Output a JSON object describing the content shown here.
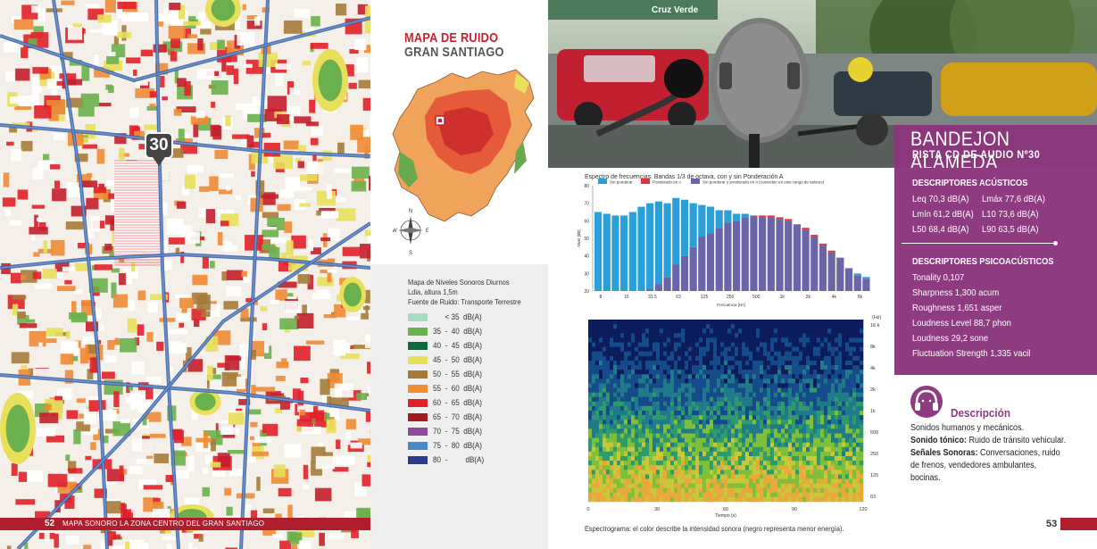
{
  "left_page": {
    "pin_number": "30",
    "page_number": "52",
    "footer_text": "MAPA SONORO LA ZONA CENTRO DEL GRAN SANTIAGO"
  },
  "middle_panel": {
    "title": "MAPA DE RUIDO",
    "subtitle": "GRAN SANTIAGO",
    "compass": {
      "n": "N",
      "s": "S",
      "e": "E",
      "w": "W"
    },
    "legend_title_lines": [
      "Mapa de Niveles Sonoros Diurnos",
      "Ldia, altura 1,5m",
      "Fuente de Ruido: Transporte Terrestre"
    ],
    "legend": [
      {
        "label": "      < 35  dB(A)",
        "color": "#a8dcc0"
      },
      {
        "label": "35  -  40  dB(A)",
        "color": "#6ab04c"
      },
      {
        "label": "40  -  45  dB(A)",
        "color": "#0d6b3f"
      },
      {
        "label": "45  -  50  dB(A)",
        "color": "#e8df5a"
      },
      {
        "label": "50  -  55  dB(A)",
        "color": "#a57b3a"
      },
      {
        "label": "55  -  60  dB(A)",
        "color": "#f08b35"
      },
      {
        "label": "60  -  65  dB(A)",
        "color": "#e2202a"
      },
      {
        "label": "65  -  70  dB(A)",
        "color": "#a11a20"
      },
      {
        "label": "70  -  75  dB(A)",
        "color": "#8c4a9c"
      },
      {
        "label": "75  -  80  dB(A)",
        "color": "#4a8ac8"
      },
      {
        "label": "80  -         dB(A)",
        "color": "#2c3b8f"
      }
    ]
  },
  "right_page": {
    "photo_sign": "Cruz Verde",
    "header_title": "BANDEJON  ALAMEDA",
    "header_subtitle": "PISTA CD DE AUDIO Nº30",
    "acoustic_title": "DESCRIPTORES ACÚSTICOS",
    "acoustic": [
      [
        "Leq 70,3 dB(A)",
        "Lmáx 77,6 dB(A)"
      ],
      [
        "Lmín 61,2 dB(A)",
        "L10 73,6 dB(A)"
      ],
      [
        "L50 68,4 dB(A)",
        "L90 63,5 dB(A)"
      ]
    ],
    "psycho_title": "DESCRIPTORES PSICOACÚSTICOS",
    "psycho": [
      "Tonality 0,107",
      "Sharpness 1,300 acum",
      "Roughness 1,651 asper",
      "Loudness Level 88,7 phon",
      "Loudness 29,2 sone",
      "Fluctuation Strength 1,335 vacil"
    ],
    "descripcion_title": "Descripción",
    "desc_line1": "Sonidos humanos y mecánicos.",
    "desc_tonal_label": "Sonido tónico:",
    "desc_tonal_value": " Ruido de tránsito vehicular.",
    "desc_signals_label": "Señales Sonoras:",
    "desc_signals_value": " Conversaciones, ruido",
    "desc_line4": "de frenos, vendedores ambulantes,",
    "desc_line5": "bocinas.",
    "page_number": "53",
    "spectrogram_caption": "Espectrograma: el color describe la intensidad sonora (negro representa menor energía).",
    "spectrogram": {
      "y_unit": "(Hz)",
      "y_ticks": [
        "16 k",
        "8k",
        "4k",
        "2k",
        "1k",
        "500",
        "250",
        "125",
        "63"
      ],
      "x_ticks": [
        "0",
        "30",
        "60",
        "90",
        "120"
      ],
      "x_label": "Tiempo (s)"
    }
  },
  "chart_data": {
    "type": "bar",
    "title": "Espectro de frecuencias. Bandas 1/3 de octava, con y sin Ponderación A",
    "xlabel": "Frecuencia [Hz]",
    "ylabel": "Nivel [dB]",
    "ylim": [
      20,
      80
    ],
    "y_ticks": [
      "80",
      "70",
      "60",
      "50",
      "40",
      "30",
      "20"
    ],
    "x_tick_labels": [
      "8",
      "16",
      "31.5",
      "63",
      "125",
      "250",
      "500",
      "1k",
      "2k",
      "4k",
      "8k",
      "16 k"
    ],
    "legend": [
      {
        "name": "Sin ponderar",
        "color": "#2a9fd8"
      },
      {
        "name": "Ponderado en A",
        "color": "#e0333b"
      },
      {
        "name": "Sin ponderar y ponderado en A (coinciden en este rango de valores)",
        "color": "#6a64a8"
      }
    ],
    "series": [
      {
        "name": "Sin ponderar",
        "values": [
          65,
          64,
          63,
          63,
          65,
          68,
          70,
          71,
          70,
          73,
          72,
          70,
          69,
          68,
          66,
          66,
          64,
          64,
          63,
          62,
          62,
          61,
          60,
          58,
          55,
          51,
          46,
          42,
          39,
          33,
          30,
          28
        ]
      },
      {
        "name": "Ponderado en A",
        "values": [
          20,
          20,
          20,
          20,
          20,
          20,
          21,
          24,
          28,
          35,
          40,
          45,
          51,
          53,
          56,
          59,
          60,
          62,
          63,
          63,
          63,
          62,
          61,
          58,
          56,
          52,
          47,
          43,
          39,
          33,
          29,
          27
        ]
      }
    ]
  }
}
